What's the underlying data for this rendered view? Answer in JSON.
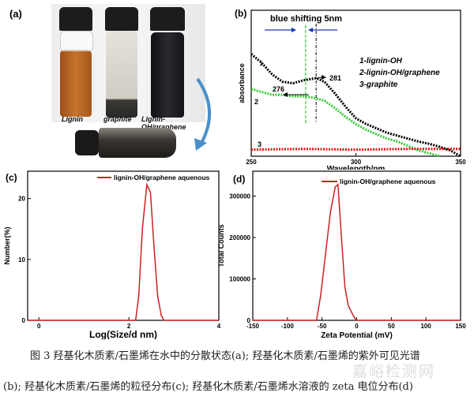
{
  "panel_a": {
    "label": "(a)",
    "vial_labels": [
      "Lignin",
      "graphite",
      "Lignin-OH/graphene"
    ],
    "colors": {
      "lignin": "#b8621e",
      "graphite": "#d8d4cc",
      "graphene": "#1e1e22",
      "arrow": "#4a8fc9"
    }
  },
  "caption": {
    "line1": "图 3 羟基化木质素/石墨烯在水中的分散状态(a); 羟基化木质素/石墨烯的紫外可见光谱",
    "line2": "(b); 羟基化木质素/石墨烯的粒径分布(c); 羟基化木质素/石墨烯水溶液的 zeta 电位分布(d)",
    "watermark": "嘉峪检测网"
  },
  "chart_data": [
    {
      "panel": "(b)",
      "type": "line",
      "title": "blue shifting 5nm",
      "xlabel": "Wavelength/nm",
      "ylabel": "absorbance",
      "xlim": [
        250,
        350
      ],
      "ylim": [
        0,
        1
      ],
      "xticks": [
        250,
        300,
        350
      ],
      "legend": [
        "1-lignin-OH",
        "2-lignin-OH/graphene",
        "3-graphite"
      ],
      "legend_placement": "top-right",
      "annotations": {
        "peak1": "281",
        "peak2": "276",
        "curve_numbers": [
          "1",
          "2",
          "3"
        ]
      },
      "markers": [
        276,
        281
      ],
      "series": [
        {
          "name": "1-lignin-OH",
          "color": "#000000",
          "x": [
            250,
            255,
            260,
            265,
            270,
            275,
            281,
            285,
            290,
            295,
            300,
            305,
            310,
            315,
            320,
            325,
            330,
            335,
            340,
            345,
            350
          ],
          "y": [
            0.7,
            0.64,
            0.56,
            0.51,
            0.5,
            0.52,
            0.535,
            0.51,
            0.43,
            0.34,
            0.26,
            0.22,
            0.19,
            0.16,
            0.14,
            0.12,
            0.1,
            0.085,
            0.065,
            0.04,
            0.0
          ]
        },
        {
          "name": "2-lignin-OH/graphene",
          "color": "#33cc33",
          "x": [
            250,
            255,
            260,
            265,
            270,
            276,
            280,
            285,
            290,
            295,
            300,
            305,
            310,
            315,
            320,
            325,
            330,
            335,
            340
          ],
          "y": [
            0.46,
            0.44,
            0.42,
            0.42,
            0.41,
            0.41,
            0.4,
            0.38,
            0.33,
            0.27,
            0.22,
            0.18,
            0.15,
            0.12,
            0.1,
            0.07,
            0.04,
            0.02,
            0.0
          ]
        },
        {
          "name": "3-graphite",
          "color": "#dd1111",
          "x": [
            250,
            275,
            300,
            325,
            350
          ],
          "y": [
            0.045,
            0.05,
            0.045,
            0.05,
            0.05
          ]
        }
      ]
    },
    {
      "panel": "(c)",
      "type": "line",
      "xlabel": "Log(Size/d nm)",
      "ylabel": "Number(%)",
      "xlim": [
        -0.25,
        4
      ],
      "ylim": [
        0,
        24.5
      ],
      "xticks": [
        0,
        2,
        4
      ],
      "yticks": [
        0,
        10,
        20
      ],
      "legend_placement": "top-right",
      "series": [
        {
          "name": "lignin-OH/graphene aquenous",
          "color": "#cc2222",
          "x": [
            -0.25,
            2.15,
            2.22,
            2.3,
            2.4,
            2.48,
            2.56,
            2.64,
            2.72,
            2.78,
            4
          ],
          "y": [
            0,
            0,
            4,
            15,
            22.3,
            21,
            12,
            4,
            0.8,
            0,
            0
          ]
        }
      ]
    },
    {
      "panel": "(d)",
      "type": "line",
      "xlabel": "Zeta Potential (mV)",
      "ylabel": "Total Counts",
      "xlim": [
        -150,
        150
      ],
      "ylim": [
        0,
        360000
      ],
      "xticks": [
        -150,
        -100,
        -50,
        0,
        50,
        100,
        150
      ],
      "yticks": [
        0,
        100000,
        200000,
        300000
      ],
      "legend_placement": "top-right",
      "series": [
        {
          "name": "lignin-OH/graphene aquenous",
          "color": "#cc2222",
          "x": [
            -150,
            -58,
            -52,
            -45,
            -38,
            -31,
            -27,
            -22,
            -17,
            -12,
            -6,
            -1,
            150
          ],
          "y": [
            0,
            0,
            60000,
            160000,
            260000,
            322000,
            328000,
            200000,
            80000,
            35000,
            15000,
            0,
            0
          ]
        }
      ]
    }
  ]
}
